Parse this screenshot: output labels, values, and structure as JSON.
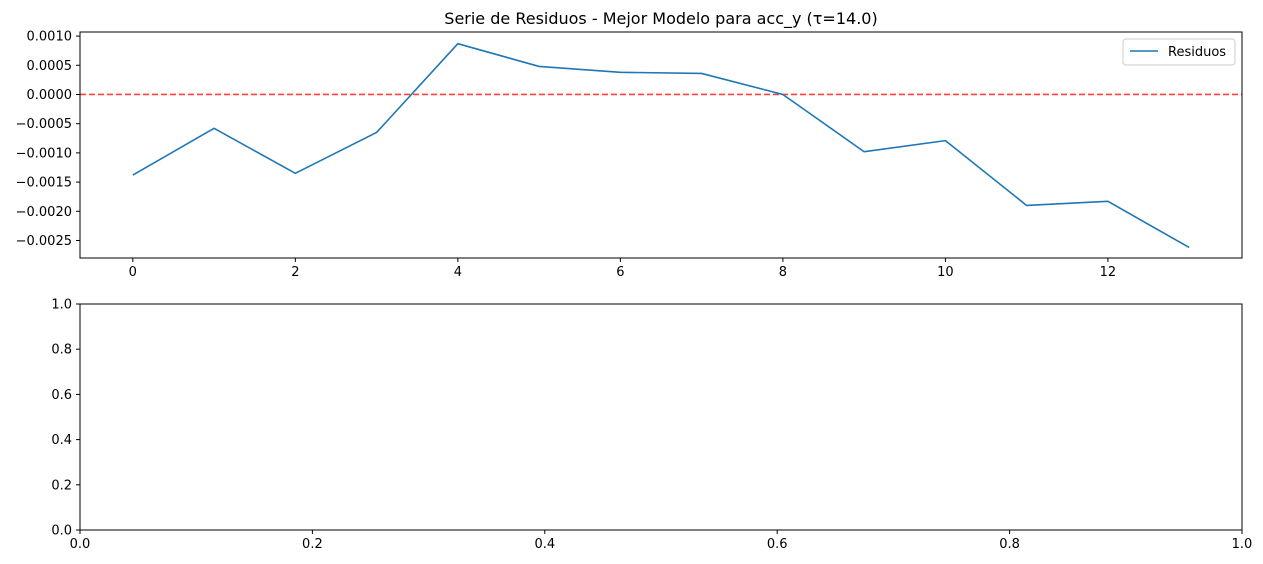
{
  "chart_data": [
    {
      "type": "line",
      "title": "Serie de Residuos - Mejor Modelo para acc_y (τ=14.0)",
      "xlabel": "",
      "ylabel": "",
      "xlim": [
        -0.65,
        13.65
      ],
      "ylim": [
        -0.0028,
        0.00107
      ],
      "xticks": [
        0,
        2,
        4,
        6,
        8,
        10,
        12
      ],
      "xtick_labels": [
        "0",
        "2",
        "4",
        "6",
        "8",
        "10",
        "12"
      ],
      "yticks": [
        0.001,
        0.0005,
        0.0,
        -0.0005,
        -0.001,
        -0.0015,
        -0.002,
        -0.0025
      ],
      "ytick_labels": [
        "0.0010",
        "0.0005",
        "0.0000",
        "−0.0005",
        "−0.0010",
        "−0.0015",
        "−0.0020",
        "−0.0025"
      ],
      "grid": false,
      "legend_position": "upper right",
      "series": [
        {
          "name": "Residuos",
          "color": "#1f77b4",
          "x": [
            0,
            1,
            2,
            3,
            4,
            5,
            6,
            7,
            8,
            9,
            10,
            11,
            12,
            13
          ],
          "y": [
            -0.00138,
            -0.00058,
            -0.00135,
            -0.00065,
            0.00087,
            0.00048,
            0.00038,
            0.00036,
            0.0,
            -0.00098,
            -0.00079,
            -0.0019,
            -0.00183,
            -0.00262
          ]
        }
      ],
      "reference_lines": [
        {
          "orientation": "horizontal",
          "y": 0.0,
          "color": "#ff0000",
          "style": "dashed"
        }
      ]
    },
    {
      "type": "line",
      "title": "",
      "xlabel": "",
      "ylabel": "",
      "xlim": [
        0.0,
        1.0
      ],
      "ylim": [
        0.0,
        1.0
      ],
      "xticks": [
        0.0,
        0.2,
        0.4,
        0.6,
        0.8,
        1.0
      ],
      "xtick_labels": [
        "0.0",
        "0.2",
        "0.4",
        "0.6",
        "0.8",
        "1.0"
      ],
      "yticks": [
        1.0,
        0.8,
        0.6,
        0.4,
        0.2,
        0.0
      ],
      "ytick_labels": [
        "1.0",
        "0.8",
        "0.6",
        "0.4",
        "0.2",
        "0.0"
      ],
      "grid": false,
      "series": []
    }
  ]
}
